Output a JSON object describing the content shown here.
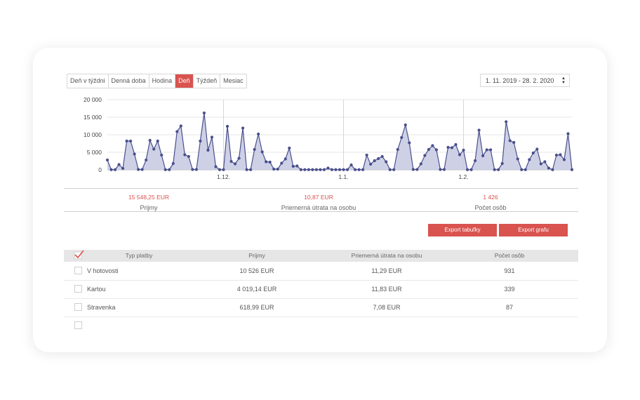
{
  "tabs": [
    {
      "label": "Deň v týždni",
      "active": false
    },
    {
      "label": "Denná doba",
      "active": false
    },
    {
      "label": "Hodina",
      "active": false
    },
    {
      "label": "Deň",
      "active": true
    },
    {
      "label": "Týždeň",
      "active": false
    },
    {
      "label": "Mesiac",
      "active": false
    }
  ],
  "date_range": "1. 11. 2019 - 28. 2. 2020",
  "chart_data": {
    "type": "area",
    "title": "",
    "xlabel": "",
    "ylabel": "",
    "x_range": [
      "1.11.2019",
      "28.2.2020"
    ],
    "x_tick_labels": [
      "1.12.",
      "1.1.",
      "1.2."
    ],
    "y_tick_labels": [
      "0",
      "5 000",
      "10 000",
      "15 000",
      "20 000"
    ],
    "ylim": [
      0,
      20000
    ],
    "grid": true,
    "color": "#4a4f8c",
    "fill": "#c9cce3",
    "series": [
      {
        "values": [
          2800,
          50,
          50,
          1500,
          400,
          8200,
          8200,
          4500,
          100,
          100,
          2800,
          8400,
          5900,
          8200,
          4200,
          50,
          50,
          1800,
          10900,
          12500,
          4300,
          3800,
          100,
          100,
          8200,
          16200,
          5600,
          9300,
          900,
          50,
          50,
          12400,
          2400,
          1700,
          3300,
          11900,
          50,
          50,
          5800,
          10200,
          5100,
          2300,
          2200,
          200,
          200,
          1900,
          3100,
          6200,
          1000,
          1100,
          50,
          50,
          50,
          50,
          50,
          50,
          50,
          500,
          50,
          50,
          50,
          50,
          50,
          1400,
          50,
          50,
          50,
          4200,
          1600,
          2600,
          3200,
          3800,
          2300,
          50,
          50,
          5800,
          9200,
          12800,
          7700,
          100,
          100,
          1700,
          4100,
          5800,
          6900,
          5700,
          100,
          100,
          6400,
          6300,
          7200,
          4300,
          5600,
          50,
          50,
          2600,
          11300,
          4000,
          5700,
          5700,
          50,
          50,
          1800,
          13700,
          8300,
          7800,
          3100,
          50,
          50,
          2900,
          4800,
          5900,
          1700,
          2300,
          500,
          50,
          4200,
          4300,
          2900,
          10300,
          50
        ]
      }
    ]
  },
  "summary": [
    {
      "value": "15 548,25 EUR",
      "label": "Prijmy"
    },
    {
      "value": "10,87 EUR",
      "label": "Priemerná útrata na osobu"
    },
    {
      "value": "1 426",
      "label": "Počet osôb"
    }
  ],
  "export_table": "Export tabuľky",
  "export_chart": "Export grafu",
  "table": {
    "headers": [
      "Typ platby",
      "Prijmy",
      "Priemerná útrata na osobu",
      "Počet osôb"
    ],
    "rows": [
      {
        "name": "V hotovosti",
        "income": "10 526 EUR",
        "avg": "11,29 EUR",
        "count": "931"
      },
      {
        "name": "Kartou",
        "income": "4 019,14 EUR",
        "avg": "11,83 EUR",
        "count": "339"
      },
      {
        "name": "Stravenka",
        "income": "618,99 EUR",
        "avg": "7,08 EUR",
        "count": "87"
      }
    ]
  }
}
